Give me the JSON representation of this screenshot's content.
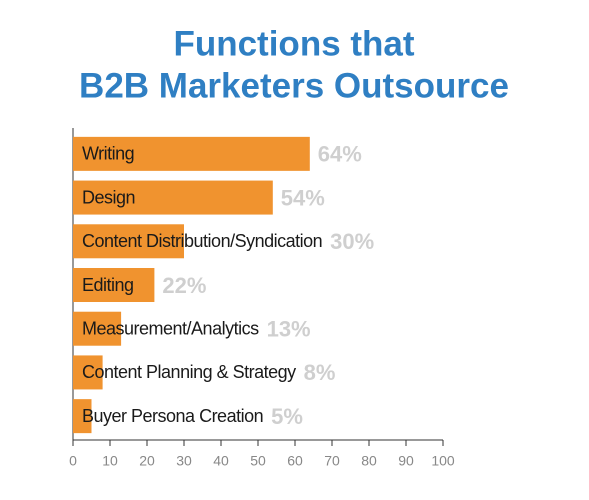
{
  "chart_data": {
    "type": "bar",
    "orientation": "horizontal",
    "title": [
      "Functions that",
      "B2B Marketers Outsource"
    ],
    "categories": [
      "Writing",
      "Design",
      "Content Distribution/Syndication",
      "Editing",
      "Measurement/Analytics",
      "Content Planning & Strategy",
      "Buyer Persona Creation"
    ],
    "values": [
      64,
      54,
      30,
      22,
      13,
      8,
      5
    ],
    "value_labels": [
      "64%",
      "54%",
      "30%",
      "22%",
      "13%",
      "8%",
      "5%"
    ],
    "color": "#f0932f",
    "xlim": [
      0,
      100
    ],
    "xticks": [
      0,
      10,
      20,
      30,
      40,
      50,
      60,
      70,
      80,
      90,
      100
    ]
  }
}
